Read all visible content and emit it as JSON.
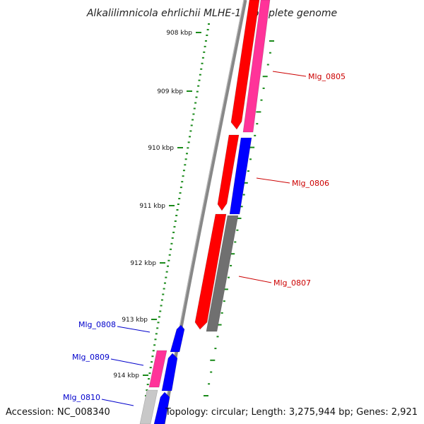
{
  "title": "Alkalilimnicola ehrlichii MLHE-1, complete genome",
  "accession": "Accession: NC_008340",
  "summary": "Topology: circular; Length: 3,275,944 bp; Genes: 2,921",
  "ruler": {
    "ticks": [
      "908 kbp",
      "909 kbp",
      "910 kbp",
      "911 kbp",
      "912 kbp",
      "913 kbp",
      "914 kbp"
    ],
    "color": "#1a8a1a"
  },
  "colors": {
    "red": "#ff0000",
    "pink": "#ff3399",
    "blue": "#0000ff",
    "gray": "#707070",
    "lightgray": "#c8c8c8",
    "backbone": "#888888",
    "forward_label": "#cc0000",
    "reverse_label": "#0000cc"
  },
  "genes": [
    {
      "label": "Mlg_0805",
      "strand": "forward"
    },
    {
      "label": "Mlg_0806",
      "strand": "forward"
    },
    {
      "label": "Mlg_0807",
      "strand": "forward"
    },
    {
      "label": "Mlg_0808",
      "strand": "reverse"
    },
    {
      "label": "Mlg_0809",
      "strand": "reverse"
    },
    {
      "label": "Mlg_0810",
      "strand": "reverse"
    }
  ]
}
